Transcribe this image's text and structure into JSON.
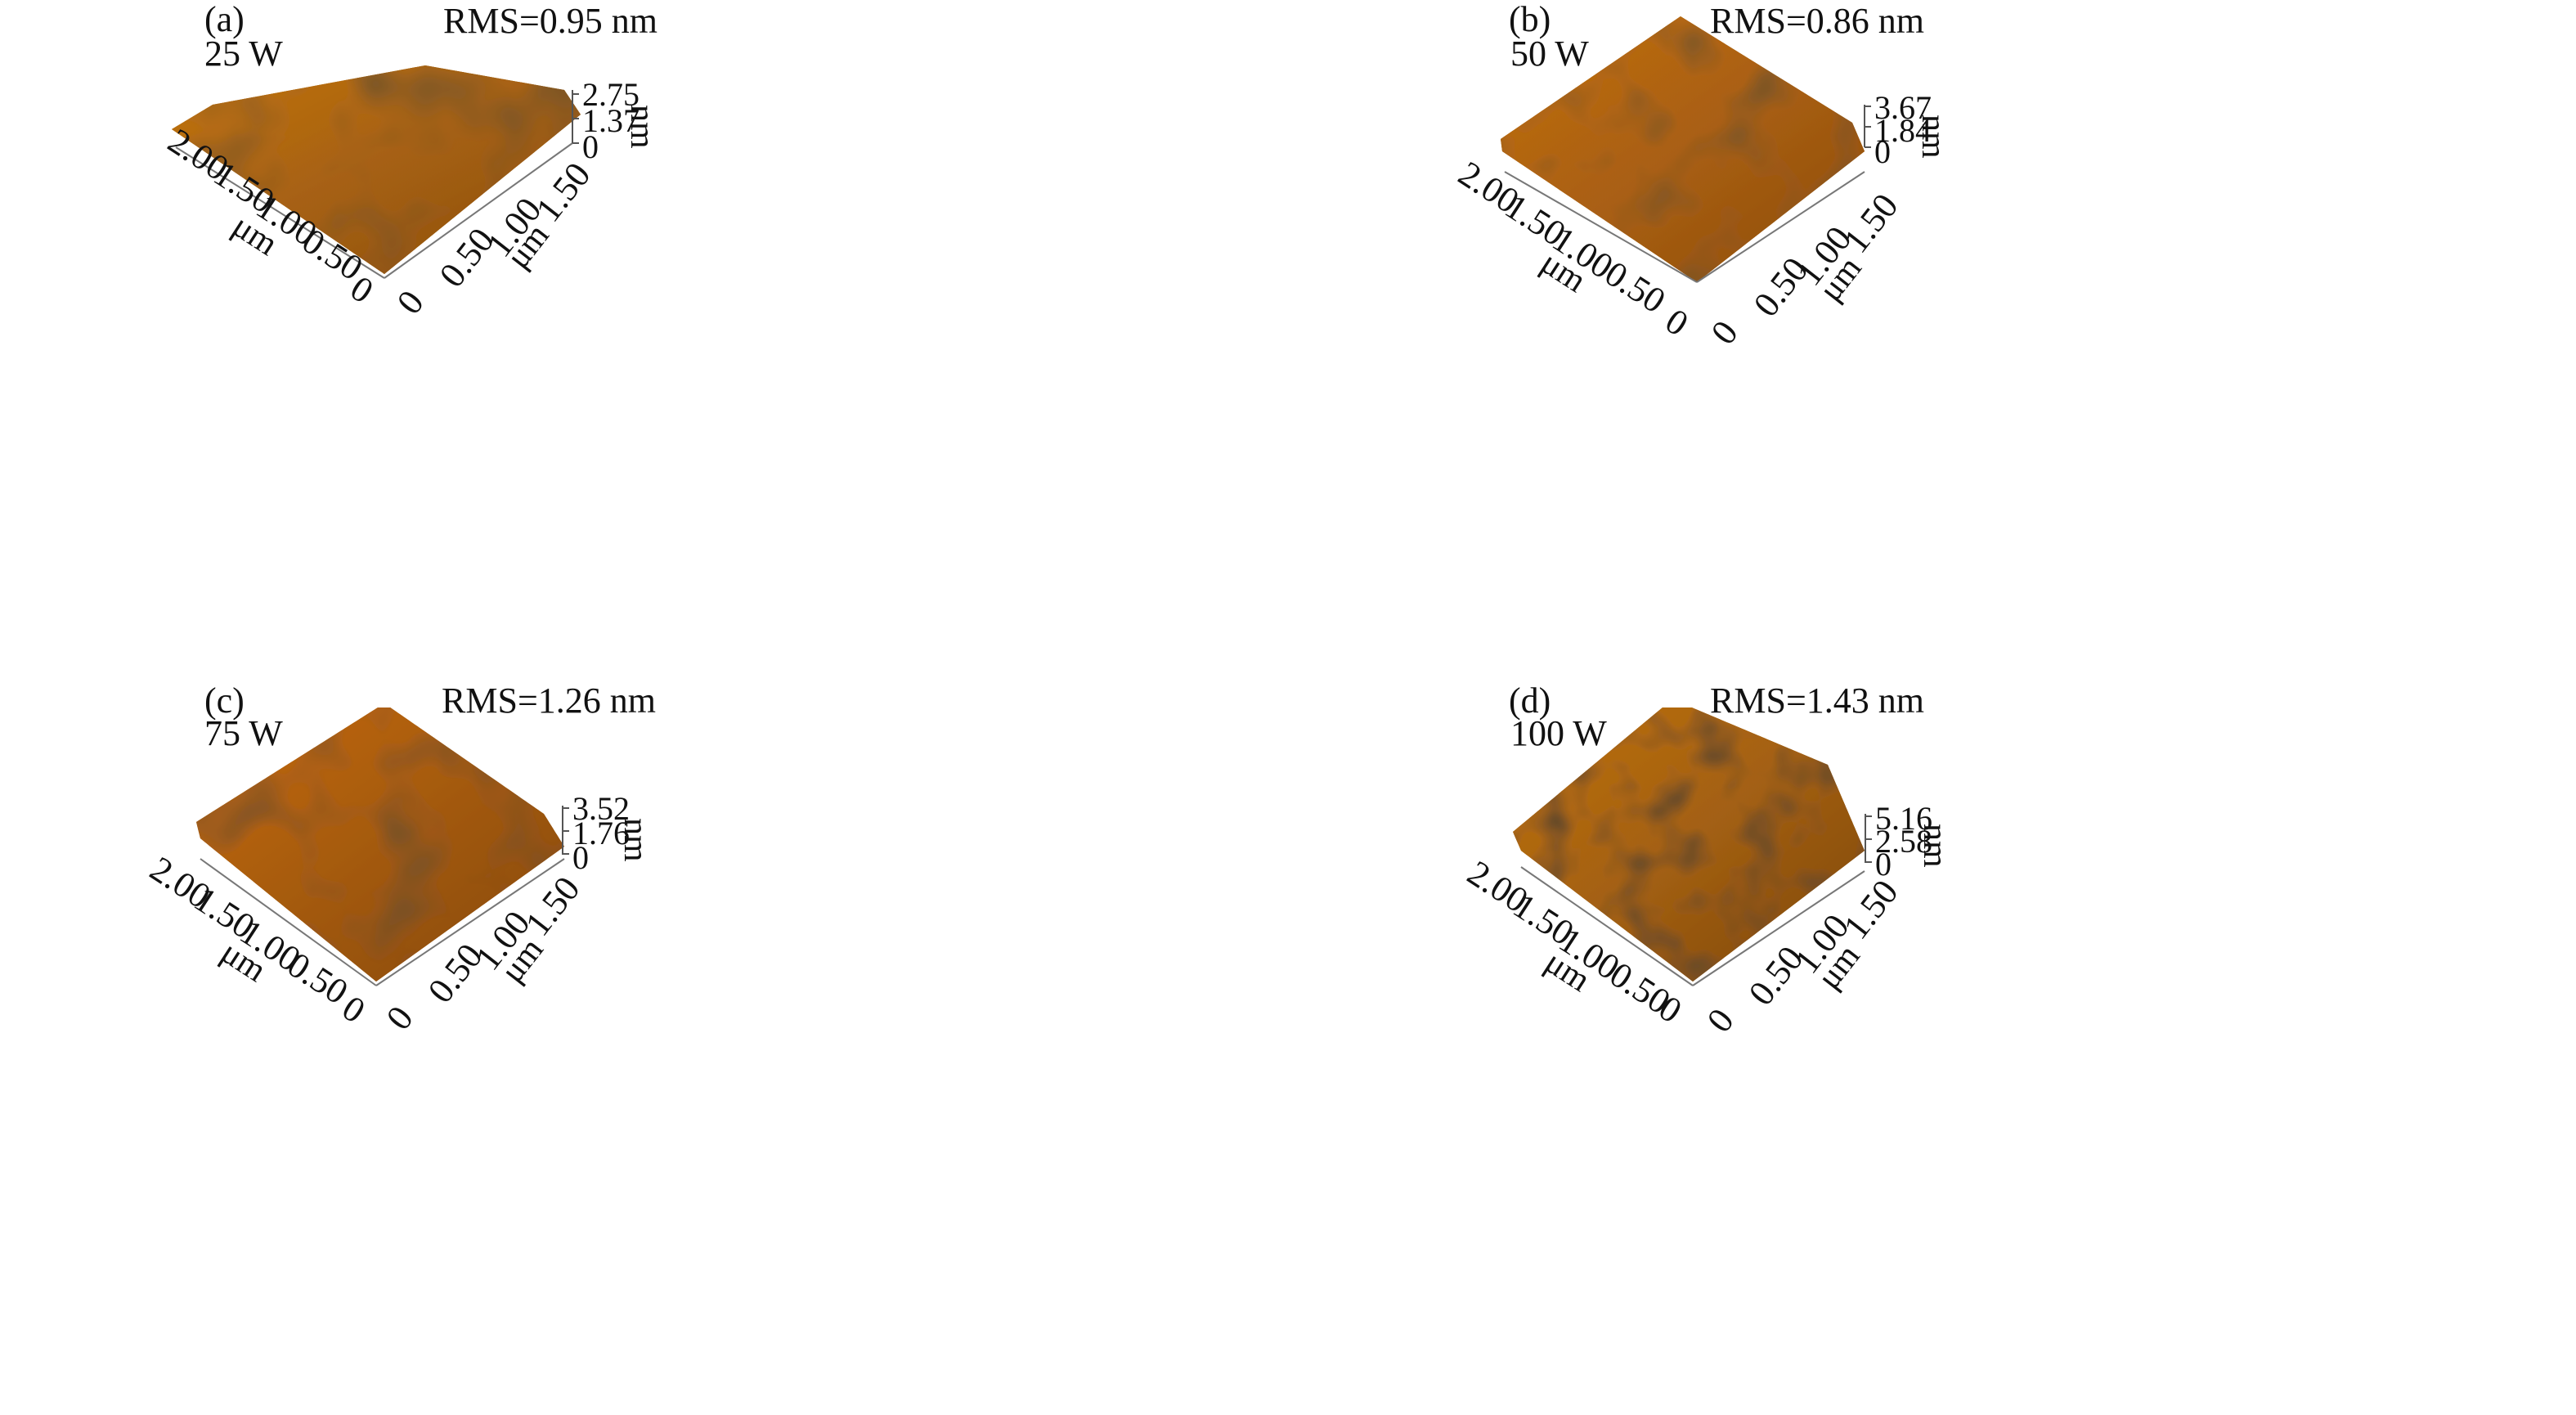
{
  "panels": [
    {
      "tag": "(a)",
      "power": "25 W",
      "rms": "RMS=0.95 nm",
      "z_ticks": [
        "2.75",
        "1.37",
        "0"
      ],
      "z_unit": "nm",
      "left_ticks": [
        "2.00",
        "1.50",
        "1.00",
        "0.50",
        "0"
      ],
      "left_unit": "μm",
      "right_ticks": [
        "0",
        "0.50",
        "1.00",
        "1.50"
      ],
      "right_unit": "μm",
      "palette": {
        "dark": "#3a2008",
        "mid": "#b86a14",
        "light": "#d8c84a"
      }
    },
    {
      "tag": "(b)",
      "power": "50 W",
      "rms": "RMS=0.86 nm",
      "z_ticks": [
        "3.67",
        "1.84",
        "0"
      ],
      "z_unit": "nm",
      "left_ticks": [
        "2.00",
        "1.50",
        "1.00",
        "0.50",
        "0"
      ],
      "left_unit": "μm",
      "right_ticks": [
        "0",
        "0.50",
        "1.00",
        "1.50"
      ],
      "right_unit": "μm",
      "palette": {
        "dark": "#3b1f08",
        "mid": "#bd6812",
        "light": "#d2c746"
      }
    },
    {
      "tag": "(c)",
      "power": "75 W",
      "rms": "RMS=1.26 nm",
      "z_ticks": [
        "3.52",
        "1.76",
        "0"
      ],
      "z_unit": "nm",
      "left_ticks": [
        "2.00",
        "1.50",
        "1.00",
        "0.50",
        "0"
      ],
      "left_unit": "μm",
      "right_ticks": [
        "0",
        "0.50",
        "1.00",
        "1.50"
      ],
      "right_unit": "μm",
      "palette": {
        "dark": "#3c1e06",
        "mid": "#c2640e",
        "light": "#cfd04a"
      }
    },
    {
      "tag": "(d)",
      "power": "100 W",
      "rms": "RMS=1.43 nm",
      "z_ticks": [
        "5.16",
        "2.58",
        "0"
      ],
      "z_unit": "nm",
      "left_ticks": [
        "2.00",
        "1.50",
        "1.00",
        "0.50",
        "0"
      ],
      "left_unit": "μm",
      "right_ticks": [
        "0",
        "0.50",
        "1.00",
        "1.50"
      ],
      "right_unit": "μm",
      "palette": {
        "dark": "#2e1905",
        "mid": "#b9690f",
        "light": "#d7cf55"
      }
    }
  ]
}
